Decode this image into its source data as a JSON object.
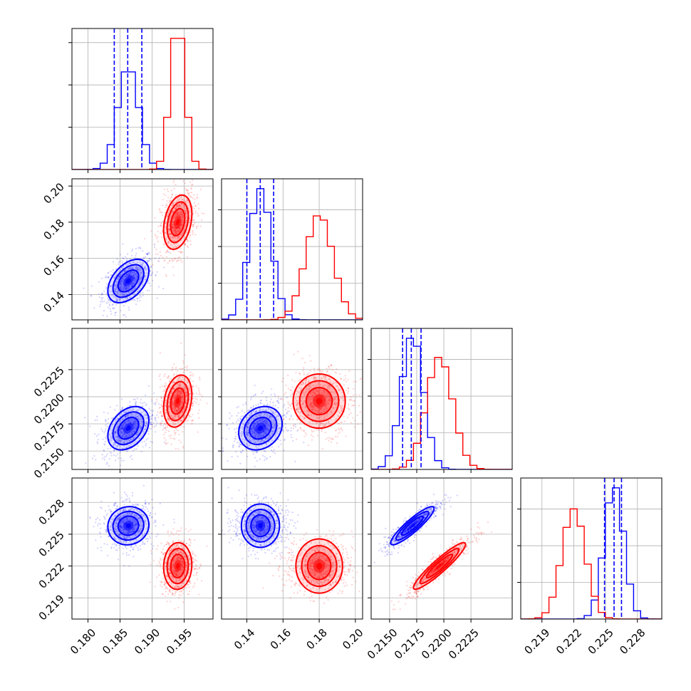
{
  "chart_data": {
    "type": "corner",
    "title": "",
    "legend": false,
    "grid": true,
    "colors": {
      "blue": "#0000ff",
      "red": "#ff0000"
    },
    "parameters": [
      {
        "index": 0,
        "range": [
          0.1775,
          0.1995
        ],
        "ticks": [
          0.18,
          0.185,
          0.19,
          0.195
        ],
        "tick_labels": [
          "0.180",
          "0.185",
          "0.190",
          "0.195"
        ]
      },
      {
        "index": 1,
        "range": [
          0.126,
          0.204
        ],
        "ticks": [
          0.14,
          0.16,
          0.18,
          0.2
        ],
        "tick_labels": [
          "0.14",
          "0.16",
          "0.18",
          "0.20"
        ]
      },
      {
        "index": 2,
        "range": [
          0.2133,
          0.2263
        ],
        "ticks": [
          0.215,
          0.2175,
          0.22,
          0.2225
        ],
        "tick_labels": [
          "0.2150",
          "0.2175",
          "0.2200",
          "0.2225"
        ]
      },
      {
        "index": 3,
        "range": [
          0.217,
          0.2303
        ],
        "ticks": [
          0.219,
          0.222,
          0.225,
          0.228
        ],
        "tick_labels": [
          "0.219",
          "0.222",
          "0.225",
          "0.228"
        ]
      }
    ],
    "series": [
      {
        "color": "#0000ff",
        "means": [
          0.1863,
          0.1475,
          0.2171,
          0.2258
        ],
        "sigmas": [
          0.0016,
          0.006,
          0.001,
          0.0009
        ],
        "quantile_lines": [
          [
            0.1841,
            0.1862,
            0.1884
          ],
          [
            0.14,
            0.1474,
            0.1548
          ],
          [
            0.2162,
            0.217,
            0.2179
          ],
          [
            0.2249,
            0.2258,
            0.2265
          ]
        ],
        "correlations": {
          "1_0": 0.45,
          "2_0": 0.35,
          "2_1": 0.2,
          "3_0": 0.05,
          "3_1": 0.0,
          "3_2": 0.9
        }
      },
      {
        "color": "#ff0000",
        "means": [
          0.194,
          0.18,
          0.2196,
          0.222
        ],
        "sigmas": [
          0.0011,
          0.0075,
          0.0012,
          0.0011
        ],
        "quantile_lines": [],
        "correlations": {
          "1_0": 0.3,
          "2_0": 0.25,
          "2_1": 0.0,
          "3_0": 0.05,
          "3_1": 0.0,
          "3_2": 0.93
        }
      }
    ]
  }
}
